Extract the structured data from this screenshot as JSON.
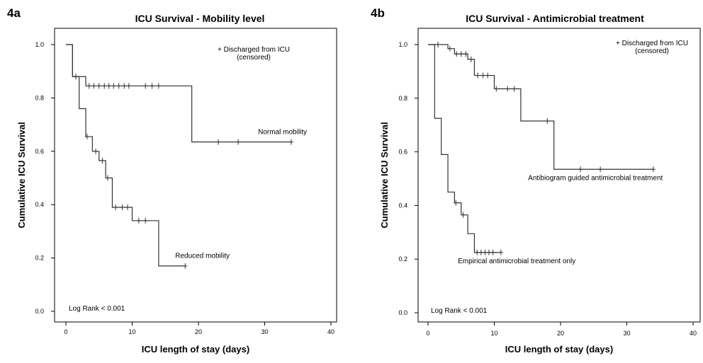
{
  "chart_data": [
    {
      "type": "line",
      "subtype": "kaplan-meier",
      "panel_label": "4a",
      "title": "ICU Survival - Mobility level",
      "xlabel": "ICU length of stay (days)",
      "ylabel": "Cumulative ICU Survival",
      "xlim": [
        0,
        40
      ],
      "ylim": [
        0,
        1
      ],
      "xticks": [
        0,
        10,
        20,
        30,
        40
      ],
      "yticks": [
        0.0,
        0.2,
        0.4,
        0.6,
        0.8,
        1.0
      ],
      "xtick_labels": [
        "0",
        "10",
        "20",
        "30",
        "40"
      ],
      "ytick_labels": [
        "0.0",
        "0.2",
        "0.4",
        "0.6",
        "0.8",
        "1.0"
      ],
      "legend_text": [
        "+ Discharged from ICU",
        "(censored)"
      ],
      "log_rank": "Log Rank < 0.001",
      "series": [
        {
          "name": "Normal mobility",
          "steps": [
            [
              0,
              1.0
            ],
            [
              1,
              0.88
            ],
            [
              3,
              0.845
            ],
            [
              19,
              0.635
            ],
            [
              34,
              0.635
            ]
          ],
          "censored": [
            [
              1.5,
              0.88
            ],
            [
              3.5,
              0.845
            ],
            [
              4.2,
              0.845
            ],
            [
              5,
              0.845
            ],
            [
              5.8,
              0.845
            ],
            [
              6.5,
              0.845
            ],
            [
              7.2,
              0.845
            ],
            [
              8,
              0.845
            ],
            [
              8.8,
              0.845
            ],
            [
              9.5,
              0.845
            ],
            [
              12,
              0.845
            ],
            [
              13,
              0.845
            ],
            [
              14,
              0.845
            ],
            [
              23,
              0.635
            ],
            [
              26,
              0.635
            ],
            [
              34,
              0.635
            ]
          ],
          "label_at": [
            29,
            0.665
          ]
        },
        {
          "name": "Reduced mobility",
          "steps": [
            [
              0,
              1.0
            ],
            [
              1,
              0.88
            ],
            [
              2,
              0.76
            ],
            [
              3,
              0.655
            ],
            [
              4,
              0.6
            ],
            [
              5,
              0.565
            ],
            [
              6,
              0.5
            ],
            [
              7,
              0.39
            ],
            [
              10,
              0.34
            ],
            [
              14,
              0.17
            ],
            [
              18,
              0.17
            ]
          ],
          "censored": [
            [
              1.5,
              0.88
            ],
            [
              3.2,
              0.655
            ],
            [
              4.5,
              0.6
            ],
            [
              5.5,
              0.565
            ],
            [
              6.3,
              0.5
            ],
            [
              7.5,
              0.39
            ],
            [
              8.5,
              0.39
            ],
            [
              9.3,
              0.39
            ],
            [
              11,
              0.34
            ],
            [
              12,
              0.34
            ],
            [
              18,
              0.17
            ]
          ],
          "label_at": [
            16.5,
            0.2
          ]
        }
      ]
    },
    {
      "type": "line",
      "subtype": "kaplan-meier",
      "panel_label": "4b",
      "title": "ICU Survival - Antimicrobial treatment",
      "xlabel": "ICU length of stay (days)",
      "ylabel": "Cumulative ICU Survival",
      "xlim": [
        0,
        40
      ],
      "ylim": [
        0,
        1
      ],
      "xticks": [
        0,
        10,
        20,
        30,
        40
      ],
      "yticks": [
        0.0,
        0.2,
        0.4,
        0.6,
        0.8,
        1.0
      ],
      "xtick_labels": [
        "0",
        "10",
        "20",
        "30",
        "40"
      ],
      "ytick_labels": [
        "0.0",
        "0.2",
        "0.4",
        "0.6",
        "0.8",
        "1.0"
      ],
      "legend_text": [
        "+ Discharged from ICU",
        "(censored)"
      ],
      "log_rank": "Log Rank < 0.001",
      "series": [
        {
          "name": "Antibiogram guided antimicrobial treatment",
          "steps": [
            [
              0,
              1.0
            ],
            [
              3,
              0.985
            ],
            [
              4,
              0.965
            ],
            [
              6,
              0.945
            ],
            [
              7,
              0.885
            ],
            [
              10,
              0.835
            ],
            [
              14,
              0.715
            ],
            [
              19,
              0.535
            ],
            [
              34,
              0.535
            ]
          ],
          "censored": [
            [
              1.5,
              1.0
            ],
            [
              3.3,
              0.985
            ],
            [
              4.3,
              0.965
            ],
            [
              5,
              0.965
            ],
            [
              5.7,
              0.965
            ],
            [
              6.5,
              0.945
            ],
            [
              7.5,
              0.885
            ],
            [
              8.3,
              0.885
            ],
            [
              9,
              0.885
            ],
            [
              10.3,
              0.835
            ],
            [
              12,
              0.835
            ],
            [
              13,
              0.835
            ],
            [
              18,
              0.715
            ],
            [
              23,
              0.535
            ],
            [
              26,
              0.535
            ],
            [
              34,
              0.535
            ]
          ],
          "label_at": [
            15.1,
            0.495
          ]
        },
        {
          "name": "Empirical antimicrobial treatment only",
          "steps": [
            [
              0,
              1.0
            ],
            [
              1,
              0.725
            ],
            [
              2,
              0.59
            ],
            [
              3,
              0.45
            ],
            [
              4,
              0.41
            ],
            [
              5,
              0.365
            ],
            [
              6,
              0.295
            ],
            [
              7,
              0.225
            ],
            [
              11,
              0.225
            ]
          ],
          "censored": [
            [
              4.2,
              0.41
            ],
            [
              5.3,
              0.365
            ],
            [
              7.4,
              0.225
            ],
            [
              8,
              0.225
            ],
            [
              8.6,
              0.225
            ],
            [
              9.2,
              0.225
            ],
            [
              9.8,
              0.225
            ],
            [
              11,
              0.225
            ]
          ],
          "label_at": [
            4.5,
            0.185
          ]
        }
      ]
    }
  ]
}
